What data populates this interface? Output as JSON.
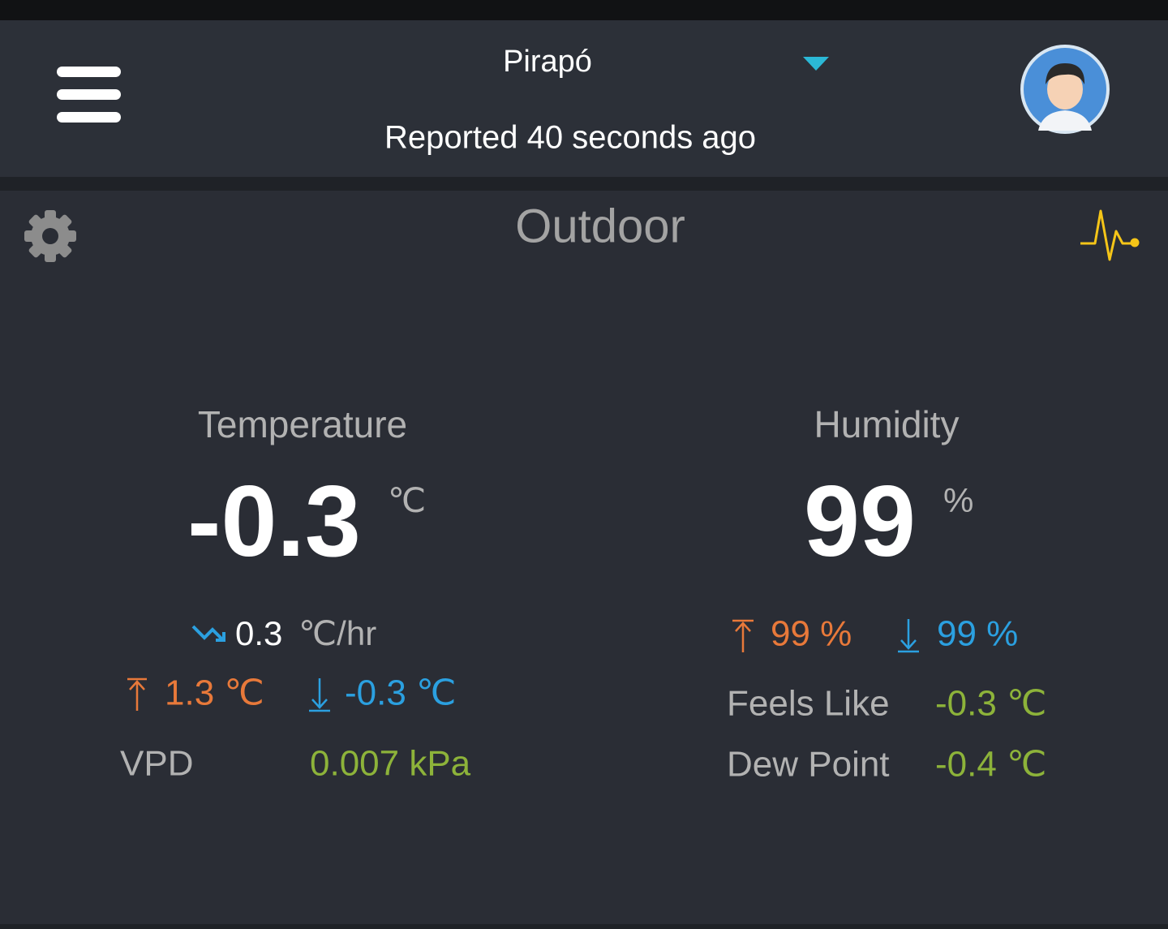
{
  "header": {
    "location": "Pirapó",
    "status": "Reported 40 seconds ago"
  },
  "panel": {
    "title": "Outdoor",
    "temperature": {
      "label": "Temperature",
      "value": "-0.3",
      "unit": "℃",
      "trend_value": "0.3",
      "trend_unit": "℃/hr",
      "high": "1.3 ℃",
      "low": "-0.3 ℃",
      "vpd_label": "VPD",
      "vpd_value": "0.007 kPa"
    },
    "humidity": {
      "label": "Humidity",
      "value": "99",
      "unit": "%",
      "high": "99 %",
      "low": "99 %",
      "feels_like_label": "Feels Like",
      "feels_like_value": "-0.3 ℃",
      "dew_point_label": "Dew Point",
      "dew_point_value": "-0.4 ℃"
    }
  }
}
